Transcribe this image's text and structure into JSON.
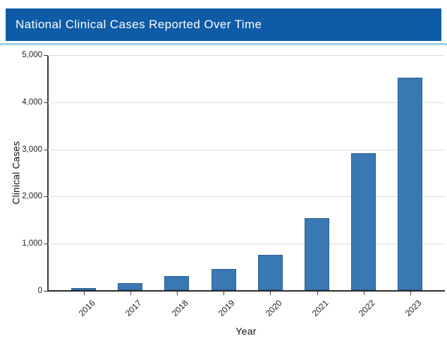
{
  "header": {
    "title": "National Clinical Cases Reported Over Time",
    "background_color": "#0e5ba7",
    "underline_color": "#a5cfe6",
    "text_color": "#ffffff"
  },
  "chart_data": {
    "type": "bar",
    "title": "National Clinical Cases Reported Over Time",
    "categories": [
      "2016",
      "2017",
      "2018",
      "2019",
      "2020",
      "2021",
      "2022",
      "2023"
    ],
    "values": [
      50,
      150,
      300,
      450,
      750,
      1530,
      2910,
      4500
    ],
    "xlabel": "Year",
    "ylabel": "Clinical Cases",
    "ylim": [
      0,
      5000
    ],
    "ytick_interval": 1000,
    "ytick_labels": [
      "0",
      "1,000",
      "2,000",
      "3,000",
      "4,000",
      "5,000"
    ],
    "grid": "horizontal",
    "gridline_color": "#dcdcdc",
    "bar_color": "#3a78b4",
    "bar_edge_color": "#2d5e8f",
    "background_color": "#ffffff",
    "legend": "none",
    "x_label_rotation_deg": 45
  }
}
